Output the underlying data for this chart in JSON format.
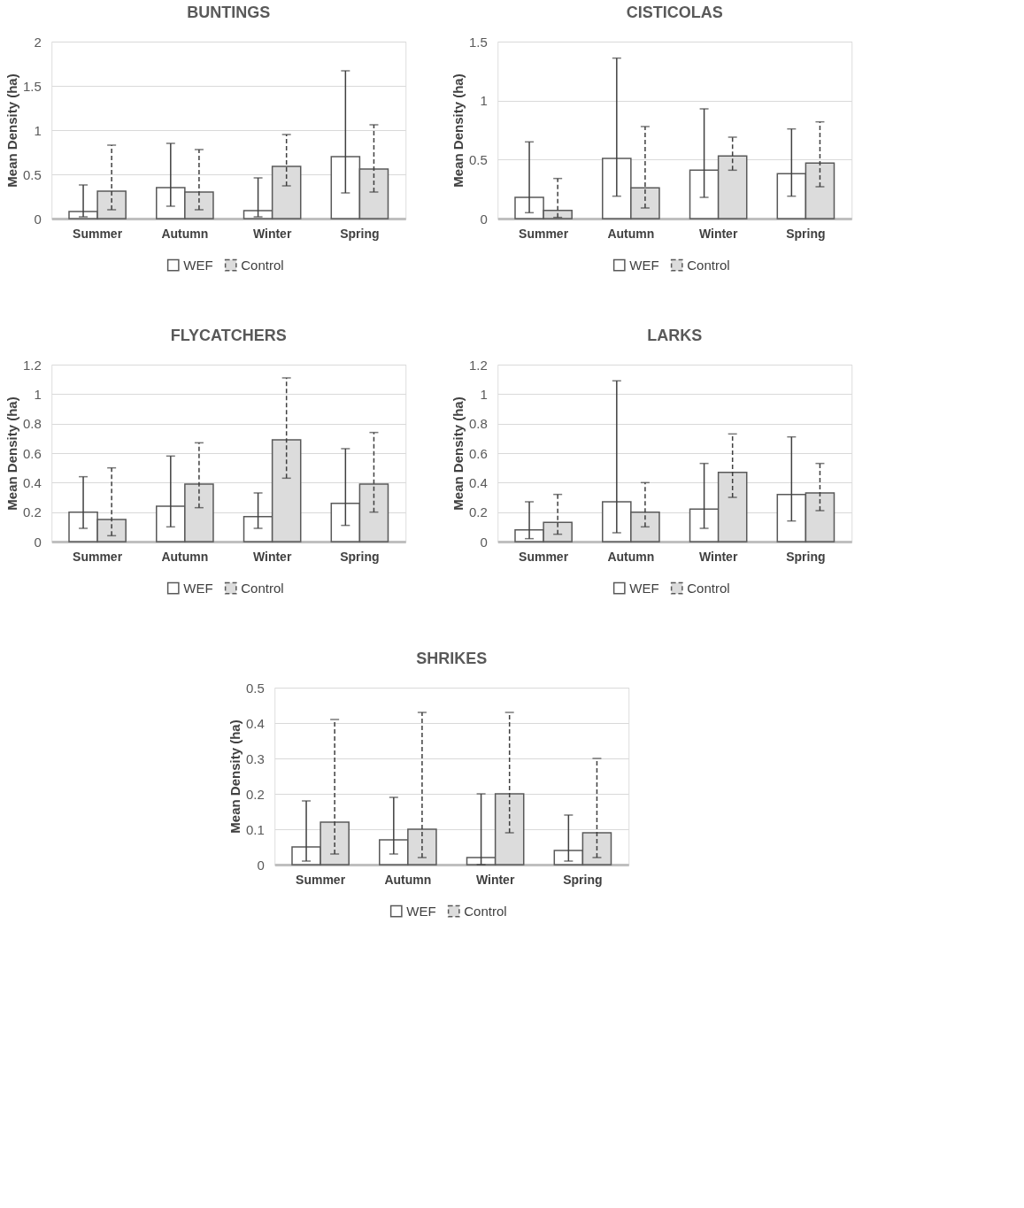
{
  "chart_data": [
    {
      "type": "bar",
      "title": "BUNTINGS",
      "ylabel": "Mean Density (ha)",
      "categories": [
        "Summer",
        "Autumn",
        "Winter",
        "Spring"
      ],
      "ylim": [
        0,
        2
      ],
      "yticks": [
        0,
        0.5,
        1,
        1.5,
        2
      ],
      "grid": "y",
      "legend": "bottom",
      "series": [
        {
          "name": "WEF",
          "color": "#ffffff",
          "line_style": "solid",
          "values": [
            0.08,
            0.35,
            0.09,
            0.7
          ],
          "errors": [
            [
              0.02,
              0.38
            ],
            [
              0.14,
              0.85
            ],
            [
              0.02,
              0.46
            ],
            [
              0.29,
              1.67
            ]
          ]
        },
        {
          "name": "Control",
          "color": "#dcdcdc",
          "line_style": "dashed",
          "values": [
            0.31,
            0.3,
            0.59,
            0.56
          ],
          "errors": [
            [
              0.1,
              0.83
            ],
            [
              0.1,
              0.78
            ],
            [
              0.37,
              0.95
            ],
            [
              0.3,
              1.06
            ]
          ]
        }
      ]
    },
    {
      "type": "bar",
      "title": "CISTICOLAS",
      "ylabel": "Mean Density (ha)",
      "categories": [
        "Summer",
        "Autumn",
        "Winter",
        "Spring"
      ],
      "ylim": [
        0,
        1.5
      ],
      "yticks": [
        0,
        0.5,
        1,
        1.5
      ],
      "grid": "y",
      "legend": "bottom",
      "series": [
        {
          "name": "WEF",
          "color": "#ffffff",
          "line_style": "solid",
          "values": [
            0.18,
            0.51,
            0.41,
            0.38
          ],
          "errors": [
            [
              0.05,
              0.65
            ],
            [
              0.19,
              1.36
            ],
            [
              0.18,
              0.93
            ],
            [
              0.19,
              0.76
            ]
          ]
        },
        {
          "name": "Control",
          "color": "#dcdcdc",
          "line_style": "dashed",
          "values": [
            0.07,
            0.26,
            0.53,
            0.47
          ],
          "errors": [
            [
              0.01,
              0.34
            ],
            [
              0.09,
              0.78
            ],
            [
              0.41,
              0.69
            ],
            [
              0.27,
              0.82
            ]
          ]
        }
      ]
    },
    {
      "type": "bar",
      "title": "FLYCATCHERS",
      "ylabel": "Mean Density (ha)",
      "categories": [
        "Summer",
        "Autumn",
        "Winter",
        "Spring"
      ],
      "ylim": [
        0,
        1.2
      ],
      "yticks": [
        0,
        0.2,
        0.4,
        0.6,
        0.8,
        1,
        1.2
      ],
      "grid": "y",
      "legend": "bottom",
      "series": [
        {
          "name": "WEF",
          "color": "#ffffff",
          "line_style": "solid",
          "values": [
            0.2,
            0.24,
            0.17,
            0.26
          ],
          "errors": [
            [
              0.09,
              0.44
            ],
            [
              0.1,
              0.58
            ],
            [
              0.09,
              0.33
            ],
            [
              0.11,
              0.63
            ]
          ]
        },
        {
          "name": "Control",
          "color": "#dcdcdc",
          "line_style": "dashed",
          "values": [
            0.15,
            0.39,
            0.69,
            0.39
          ],
          "errors": [
            [
              0.04,
              0.5
            ],
            [
              0.23,
              0.67
            ],
            [
              0.43,
              1.11
            ],
            [
              0.2,
              0.74
            ]
          ]
        }
      ]
    },
    {
      "type": "bar",
      "title": "LARKS",
      "ylabel": "Mean Density (ha)",
      "categories": [
        "Summer",
        "Autumn",
        "Winter",
        "Spring"
      ],
      "ylim": [
        0,
        1.2
      ],
      "yticks": [
        0,
        0.2,
        0.4,
        0.6,
        0.8,
        1,
        1.2
      ],
      "grid": "y",
      "legend": "bottom",
      "series": [
        {
          "name": "WEF",
          "color": "#ffffff",
          "line_style": "solid",
          "values": [
            0.08,
            0.27,
            0.22,
            0.32
          ],
          "errors": [
            [
              0.02,
              0.27
            ],
            [
              0.06,
              1.09
            ],
            [
              0.09,
              0.53
            ],
            [
              0.14,
              0.71
            ]
          ]
        },
        {
          "name": "Control",
          "color": "#dcdcdc",
          "line_style": "dashed",
          "values": [
            0.13,
            0.2,
            0.47,
            0.33
          ],
          "errors": [
            [
              0.05,
              0.32
            ],
            [
              0.1,
              0.4
            ],
            [
              0.3,
              0.73
            ],
            [
              0.21,
              0.53
            ]
          ]
        }
      ]
    },
    {
      "type": "bar",
      "title": "SHRIKES",
      "ylabel": "Mean Density (ha)",
      "categories": [
        "Summer",
        "Autumn",
        "Winter",
        "Spring"
      ],
      "ylim": [
        0,
        0.5
      ],
      "yticks": [
        0,
        0.1,
        0.2,
        0.3,
        0.4,
        0.5
      ],
      "grid": "y",
      "legend": "bottom",
      "series": [
        {
          "name": "WEF",
          "color": "#ffffff",
          "line_style": "solid",
          "values": [
            0.05,
            0.07,
            0.02,
            0.04
          ],
          "errors": [
            [
              0.01,
              0.18
            ],
            [
              0.03,
              0.19
            ],
            [
              0.0,
              0.2
            ],
            [
              0.01,
              0.14
            ]
          ]
        },
        {
          "name": "Control",
          "color": "#dcdcdc",
          "line_style": "dashed",
          "values": [
            0.12,
            0.1,
            0.2,
            0.09
          ],
          "errors": [
            [
              0.03,
              0.41
            ],
            [
              0.02,
              0.43
            ],
            [
              0.09,
              0.43
            ],
            [
              0.02,
              0.3
            ]
          ]
        }
      ]
    }
  ]
}
